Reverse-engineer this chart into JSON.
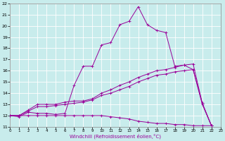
{
  "xlabel": "Windchill (Refroidissement éolien,°C)",
  "background_color": "#c8ecec",
  "grid_color": "#ffffff",
  "line_color": "#990099",
  "x_ticks": [
    0,
    1,
    2,
    3,
    4,
    5,
    6,
    7,
    8,
    9,
    10,
    11,
    12,
    13,
    14,
    15,
    16,
    17,
    18,
    19,
    20,
    21,
    22,
    23
  ],
  "y_ticks": [
    11,
    12,
    13,
    14,
    15,
    16,
    17,
    18,
    19,
    20,
    21,
    22
  ],
  "xlim": [
    0,
    23
  ],
  "ylim": [
    11,
    22
  ],
  "curve1_y": [
    12.0,
    11.9,
    12.3,
    12.2,
    12.2,
    12.1,
    12.2,
    14.7,
    16.4,
    16.4,
    18.3,
    18.5,
    20.1,
    20.4,
    21.7,
    20.1,
    19.6,
    19.4,
    16.4,
    16.5,
    16.1,
    13.1,
    11.1
  ],
  "curve2_y": [
    12.0,
    12.0,
    12.0,
    12.0,
    12.0,
    12.0,
    12.0,
    12.0,
    12.0,
    12.0,
    12.0,
    11.9,
    11.8,
    11.7,
    11.5,
    11.4,
    11.3,
    11.3,
    11.2,
    11.2,
    11.1,
    11.1,
    11.1
  ],
  "curve3_y": [
    12.0,
    12.0,
    12.5,
    13.0,
    13.0,
    13.0,
    13.2,
    13.3,
    13.3,
    13.5,
    14.0,
    14.3,
    14.7,
    15.0,
    15.4,
    15.7,
    16.0,
    16.1,
    16.3,
    16.5,
    16.6,
    13.1,
    11.1
  ],
  "curve4_y": [
    12.0,
    12.0,
    12.4,
    12.8,
    12.8,
    12.9,
    13.0,
    13.1,
    13.2,
    13.4,
    13.8,
    14.0,
    14.3,
    14.6,
    15.0,
    15.3,
    15.6,
    15.7,
    15.9,
    16.0,
    16.1,
    13.0,
    11.1
  ],
  "figsize": [
    3.2,
    2.0
  ],
  "dpi": 100
}
